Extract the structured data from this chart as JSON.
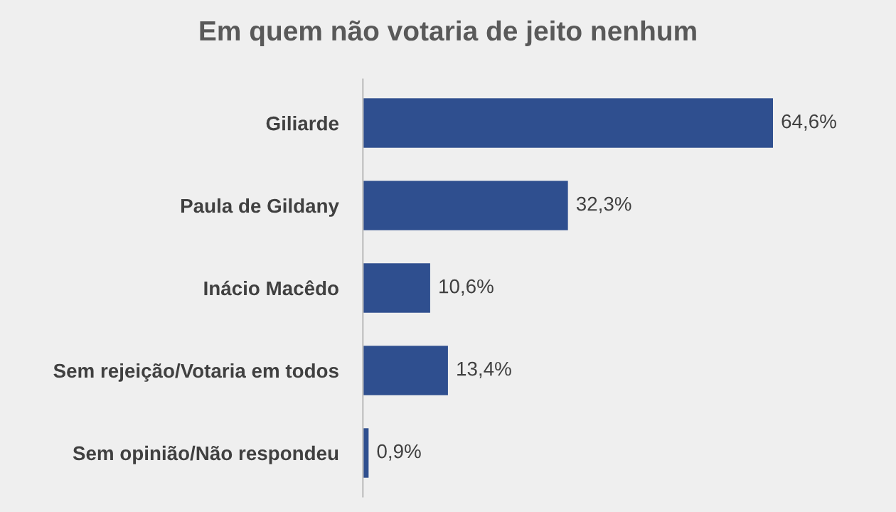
{
  "chart_data": {
    "type": "bar",
    "orientation": "horizontal",
    "title": "Em quem não votaria de jeito nenhum",
    "categories": [
      "Giliarde",
      "Paula de Gildany",
      "Inácio Macêdo",
      "Sem rejeição/Votaria em todos",
      "Sem opinião/Não respondeu"
    ],
    "values": [
      64.6,
      32.3,
      10.6,
      13.4,
      0.9
    ],
    "value_labels": [
      "64,6%",
      "32,3%",
      "10,6%",
      "13,4%",
      "0,9%"
    ],
    "color": "#2f4f8f",
    "grid": false,
    "legend": false
  }
}
